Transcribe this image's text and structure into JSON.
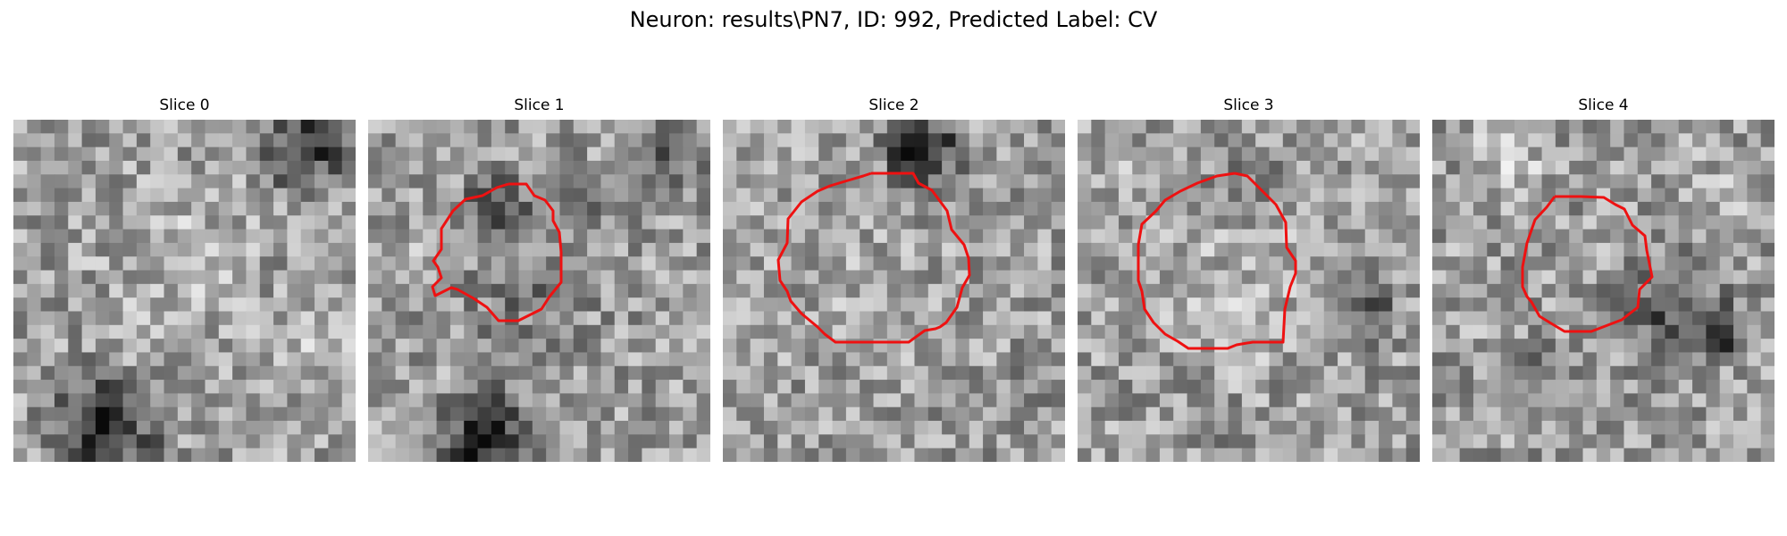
{
  "figure": {
    "title": "Neuron: results\\PN7, ID: 992, Predicted Label: CV",
    "colors": {
      "contour": "#ee1111",
      "background": "#ffffff"
    },
    "panels": [
      {
        "title": "Slice 0",
        "has_contour": false
      },
      {
        "title": "Slice 1",
        "has_contour": true
      },
      {
        "title": "Slice 2",
        "has_contour": true
      },
      {
        "title": "Slice 3",
        "has_contour": true
      },
      {
        "title": "Slice 4",
        "has_contour": true
      }
    ]
  }
}
